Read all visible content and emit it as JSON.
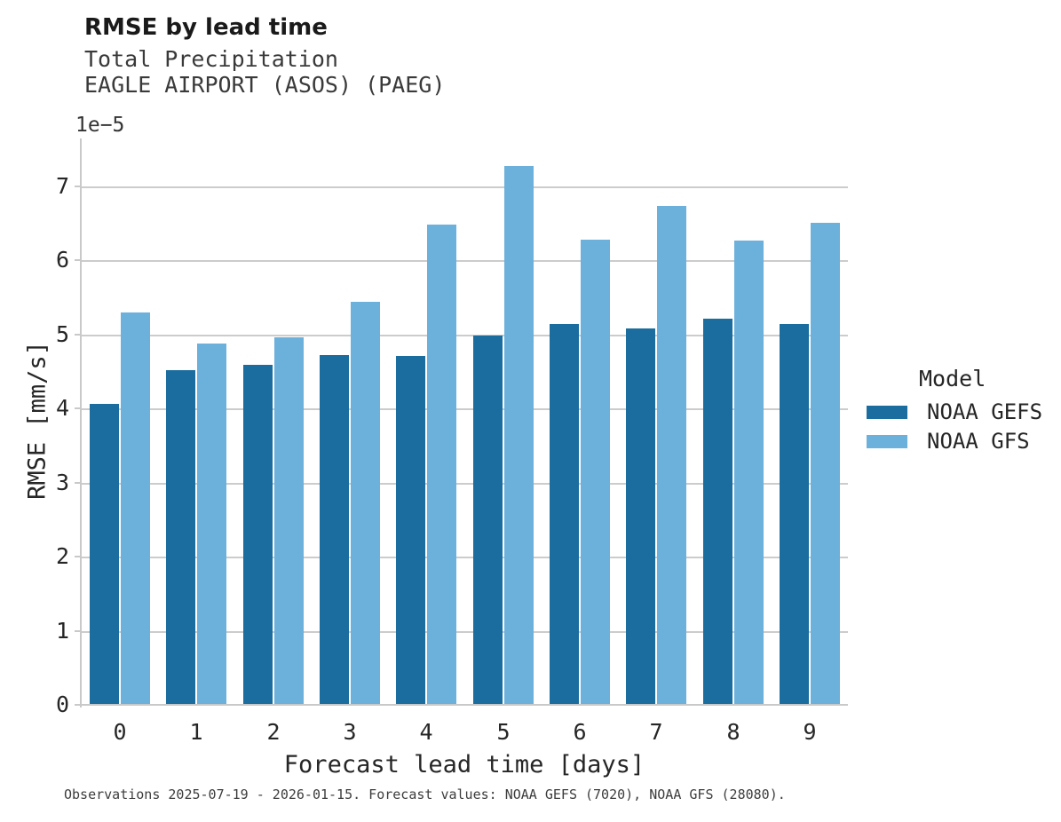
{
  "header": {
    "title": "RMSE by lead time",
    "subtitle1": "Total Precipitation",
    "subtitle2": "EAGLE AIRPORT (ASOS) (PAEG)"
  },
  "footer": {
    "caption": "Observations 2025-07-19 - 2026-01-15. Forecast values: NOAA GEFS (7020), NOAA GFS (28080)."
  },
  "legend": {
    "title": "Model",
    "entries": [
      {
        "label": "NOAA GEFS",
        "color": "#1a6d9e"
      },
      {
        "label": "NOAA GFS",
        "color": "#6cb1db"
      }
    ]
  },
  "chart_data": {
    "type": "bar",
    "title": "RMSE by lead time",
    "subtitle": [
      "Total Precipitation",
      "EAGLE AIRPORT (ASOS) (PAEG)"
    ],
    "xlabel": "Forecast lead time [days]",
    "ylabel": "RMSE [mm/s]",
    "y_offset_label": "1e−5",
    "value_scale": "1e-5",
    "categories": [
      "0",
      "1",
      "2",
      "3",
      "4",
      "5",
      "6",
      "7",
      "8",
      "9"
    ],
    "series": [
      {
        "name": "NOAA GEFS",
        "color": "#1a6d9e",
        "values": [
          4.07,
          4.53,
          4.6,
          4.73,
          4.72,
          5.0,
          5.15,
          5.09,
          5.23,
          5.15
        ]
      },
      {
        "name": "NOAA GFS",
        "color": "#6cb1db",
        "values": [
          5.31,
          4.89,
          4.97,
          5.46,
          6.5,
          7.29,
          6.29,
          6.75,
          6.28,
          6.52
        ]
      }
    ],
    "y_ticks": [
      0,
      1,
      2,
      3,
      4,
      5,
      6,
      7
    ],
    "ylim": [
      0,
      7.66
    ],
    "grid": true,
    "legend_title": "Model",
    "legend_position": "right"
  },
  "colors": {
    "grid": "#cccccc",
    "spine": "#c9c9c9",
    "tick_text": "#262626"
  }
}
